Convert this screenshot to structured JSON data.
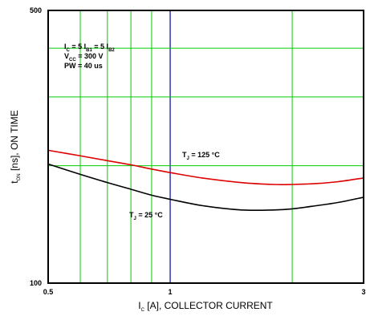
{
  "chart_data": {
    "type": "line",
    "xscale": "log",
    "yscale": "log",
    "xlim": [
      0.5,
      3
    ],
    "ylim": [
      100,
      500
    ],
    "xticks": [
      {
        "value": 0.5,
        "label": "0.5"
      },
      {
        "value": 1,
        "label": "1"
      },
      {
        "value": 3,
        "label": "3"
      }
    ],
    "yticks": [
      {
        "value": 500,
        "label": "500"
      },
      {
        "value": 100,
        "label": "100"
      }
    ],
    "grid": true,
    "grid_color": "#00cc00",
    "highlight_x": 1,
    "highlight_color": "#0000aa",
    "xlabel": {
      "main": "I",
      "sub": "C",
      "rest": " [A], COLLECTOR CURRENT"
    },
    "ylabel": {
      "main": "t",
      "sub": "ON",
      "rest": " [ns], ON TIME"
    },
    "conditions": [
      {
        "parts": [
          [
            "I",
            false
          ],
          [
            "C",
            true
          ],
          [
            " = 5 I",
            false
          ],
          [
            "B1",
            true
          ],
          [
            " = 5 I",
            false
          ],
          [
            "B2",
            true
          ]
        ]
      },
      {
        "parts": [
          [
            "V",
            false
          ],
          [
            "CC",
            true
          ],
          [
            " = 300 V",
            false
          ]
        ]
      },
      {
        "parts": [
          [
            "PW = 40 us",
            false
          ]
        ]
      }
    ],
    "series": [
      {
        "label_parts": [
          [
            "T",
            false
          ],
          [
            "J",
            true
          ],
          [
            " = 125 °C",
            false
          ]
        ],
        "color": "#dd0000",
        "x": [
          0.5,
          0.6,
          0.7,
          0.8,
          0.9,
          1.0,
          1.2,
          1.5,
          1.8,
          2.0,
          2.3,
          2.6,
          3.0
        ],
        "y": [
          219,
          212,
          206,
          201,
          196,
          192,
          186,
          181,
          179,
          179,
          180,
          182,
          186
        ]
      },
      {
        "label_parts": [
          [
            "T",
            false
          ],
          [
            "J",
            true
          ],
          [
            " = 25 °C",
            false
          ]
        ],
        "color": "#000000",
        "x": [
          0.5,
          0.6,
          0.7,
          0.8,
          0.9,
          1.0,
          1.2,
          1.5,
          1.8,
          2.0,
          2.3,
          2.6,
          3.0
        ],
        "y": [
          202,
          190,
          181,
          174,
          168,
          164,
          158,
          154,
          154,
          155,
          158,
          161,
          166
        ]
      }
    ]
  }
}
